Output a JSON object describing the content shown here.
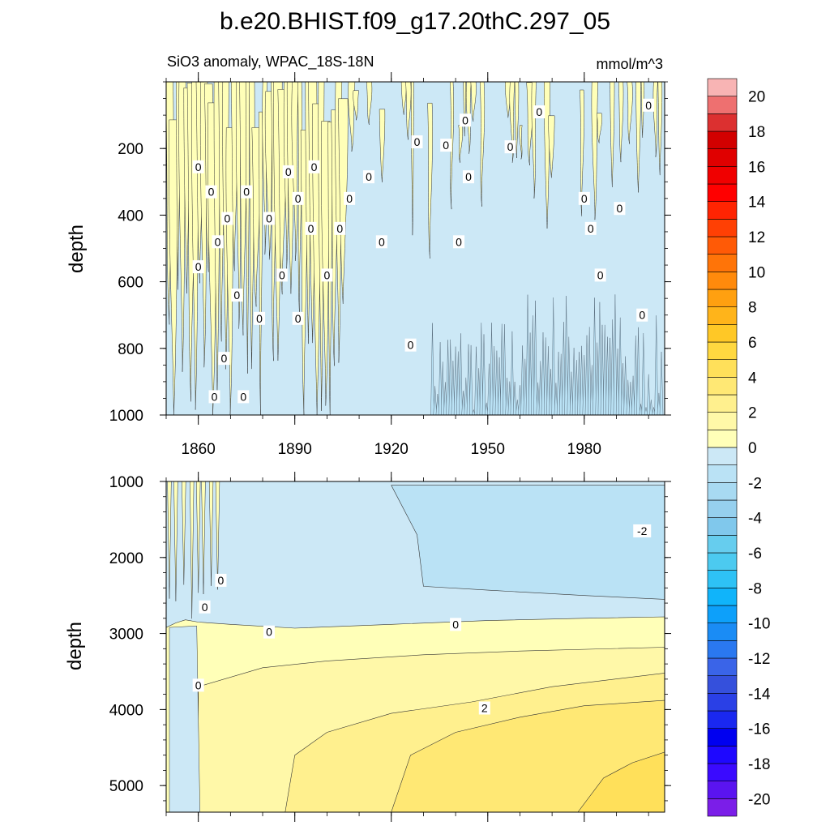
{
  "chart_data": {
    "type": "heatmap",
    "title": "b.e20.BHIST.f09_g17.20thC.297_05",
    "subtitle_left": "SiO3 anomaly, WPAC_18S-18N",
    "subtitle_right": "mmol/m^3",
    "xlabel": "",
    "ylabel": "depth",
    "xlim": [
      1850,
      2005
    ],
    "x_ticks": [
      "1860",
      "1890",
      "1920",
      "1950",
      "1980"
    ],
    "panels": [
      {
        "name": "upper",
        "ylim": [
          0,
          1000
        ],
        "y_ticks": [
          "200",
          "400",
          "600",
          "800",
          "1000"
        ],
        "contour_labels": [
          {
            "text": "0",
            "x": 1860,
            "y": 255
          },
          {
            "text": "0",
            "x": 1864,
            "y": 330
          },
          {
            "text": "0",
            "x": 1860,
            "y": 555
          },
          {
            "text": "0",
            "x": 1866,
            "y": 480
          },
          {
            "text": "0",
            "x": 1869,
            "y": 410
          },
          {
            "text": "0",
            "x": 1872,
            "y": 640
          },
          {
            "text": "0",
            "x": 1868,
            "y": 830
          },
          {
            "text": "0",
            "x": 1865,
            "y": 945
          },
          {
            "text": "0",
            "x": 1875,
            "y": 330
          },
          {
            "text": "0",
            "x": 1879,
            "y": 710
          },
          {
            "text": "0",
            "x": 1874,
            "y": 945
          },
          {
            "text": "0",
            "x": 1882,
            "y": 410
          },
          {
            "text": "0",
            "x": 1886,
            "y": 580
          },
          {
            "text": "0",
            "x": 1888,
            "y": 270
          },
          {
            "text": "0",
            "x": 1891,
            "y": 350
          },
          {
            "text": "0",
            "x": 1891,
            "y": 710
          },
          {
            "text": "0",
            "x": 1896,
            "y": 255
          },
          {
            "text": "0",
            "x": 1895,
            "y": 440
          },
          {
            "text": "0",
            "x": 1900,
            "y": 580
          },
          {
            "text": "0",
            "x": 1907,
            "y": 350
          },
          {
            "text": "0",
            "x": 1904,
            "y": 440
          },
          {
            "text": "0",
            "x": 1913,
            "y": 285
          },
          {
            "text": "0",
            "x": 1917,
            "y": 480
          },
          {
            "text": "0",
            "x": 1928,
            "y": 180
          },
          {
            "text": "0",
            "x": 1926,
            "y": 790
          },
          {
            "text": "0",
            "x": 1937,
            "y": 190
          },
          {
            "text": "0",
            "x": 1941,
            "y": 480
          },
          {
            "text": "0",
            "x": 1943,
            "y": 115
          },
          {
            "text": "0",
            "x": 1944,
            "y": 285
          },
          {
            "text": "0",
            "x": 1957,
            "y": 195
          },
          {
            "text": "0",
            "x": 1966,
            "y": 90
          },
          {
            "text": "0",
            "x": 1980,
            "y": 350
          },
          {
            "text": "0",
            "x": 1982,
            "y": 440
          },
          {
            "text": "0",
            "x": 1985,
            "y": 580
          },
          {
            "text": "0",
            "x": 1991,
            "y": 380
          },
          {
            "text": "0",
            "x": 1998,
            "y": 700
          },
          {
            "text": "0",
            "x": 2000,
            "y": 70
          }
        ]
      },
      {
        "name": "lower",
        "ylim": [
          1000,
          5350
        ],
        "y_ticks": [
          "1000",
          "2000",
          "3000",
          "4000",
          "5000"
        ],
        "zero_line_depth": [
          [
            1850,
            2920
          ],
          [
            1853,
            2860
          ],
          [
            1856,
            2820
          ],
          [
            1860,
            2850
          ],
          [
            1870,
            2880
          ],
          [
            1890,
            2930
          ],
          [
            1920,
            2880
          ],
          [
            1950,
            2830
          ],
          [
            1980,
            2800
          ],
          [
            2005,
            2780
          ]
        ],
        "contour_1_depth": [
          [
            1860,
            3700
          ],
          [
            1880,
            3450
          ],
          [
            1900,
            3360
          ],
          [
            1930,
            3280
          ],
          [
            1960,
            3230
          ],
          [
            2005,
            3180
          ]
        ],
        "contour_2_depth": [
          [
            1887,
            5350
          ],
          [
            1890,
            4600
          ],
          [
            1900,
            4300
          ],
          [
            1920,
            4050
          ],
          [
            1945,
            3900
          ],
          [
            1970,
            3700
          ],
          [
            2005,
            3520
          ]
        ],
        "contour_3_depth": [
          [
            1920,
            5350
          ],
          [
            1926,
            4600
          ],
          [
            1940,
            4300
          ],
          [
            1960,
            4100
          ],
          [
            1980,
            3950
          ],
          [
            2005,
            3880
          ]
        ],
        "contour_4_depth": [
          [
            1978,
            5350
          ],
          [
            1986,
            4900
          ],
          [
            1995,
            4700
          ],
          [
            2005,
            4560
          ]
        ],
        "contour_labels": [
          {
            "text": "0",
            "x": 1882,
            "y": 2980
          },
          {
            "text": "0",
            "x": 1940,
            "y": 2880
          },
          {
            "text": "0",
            "x": 1862,
            "y": 2650
          },
          {
            "text": "0",
            "x": 1867,
            "y": 2300
          },
          {
            "text": "0",
            "x": 1860,
            "y": 3680
          },
          {
            "text": "2",
            "x": 1949,
            "y": 3980
          },
          {
            "text": "-2",
            "x": 1998,
            "y": 1650
          }
        ]
      }
    ],
    "colorbar": {
      "levels": [
        -21,
        -20,
        -19,
        -18,
        -17,
        -16,
        -15,
        -14,
        -13,
        -12,
        -11,
        -10,
        -9,
        -8,
        -7,
        -6,
        -5,
        -4,
        -3,
        -2,
        -1,
        0,
        1,
        2,
        3,
        4,
        5,
        6,
        7,
        8,
        9,
        10,
        11,
        12,
        13,
        14,
        15,
        16,
        17,
        18,
        19,
        20,
        21
      ],
      "colors": [
        "#7b1ee8",
        "#5a14f0",
        "#3a0aff",
        "#1e08ff",
        "#0000f0",
        "#1a28f0",
        "#2a40e6",
        "#3550dc",
        "#3a64e8",
        "#2a78f0",
        "#1a8cf5",
        "#0da0fa",
        "#10b4fa",
        "#2ec2f5",
        "#4ccaf0",
        "#66cdee",
        "#80c8ec",
        "#96d0ee",
        "#a8daf2",
        "#bae2f5",
        "#cce8f6",
        "#ffffb8",
        "#fff8a8",
        "#fff08e",
        "#ffe874",
        "#ffe05a",
        "#ffd840",
        "#ffc826",
        "#ffb41a",
        "#ffa010",
        "#ff8a0c",
        "#ff7408",
        "#ff5a06",
        "#ff4004",
        "#ff2402",
        "#ff0000",
        "#f00000",
        "#e00000",
        "#d20000",
        "#dc3030",
        "#ee7070",
        "#f8b4b4"
      ],
      "tick_labels": [
        "-20",
        "-18",
        "-16",
        "-14",
        "-12",
        "-10",
        "-8",
        "-6",
        "-4",
        "-2",
        "0",
        "2",
        "4",
        "6",
        "8",
        "10",
        "12",
        "14",
        "16",
        "18",
        "20"
      ]
    }
  }
}
